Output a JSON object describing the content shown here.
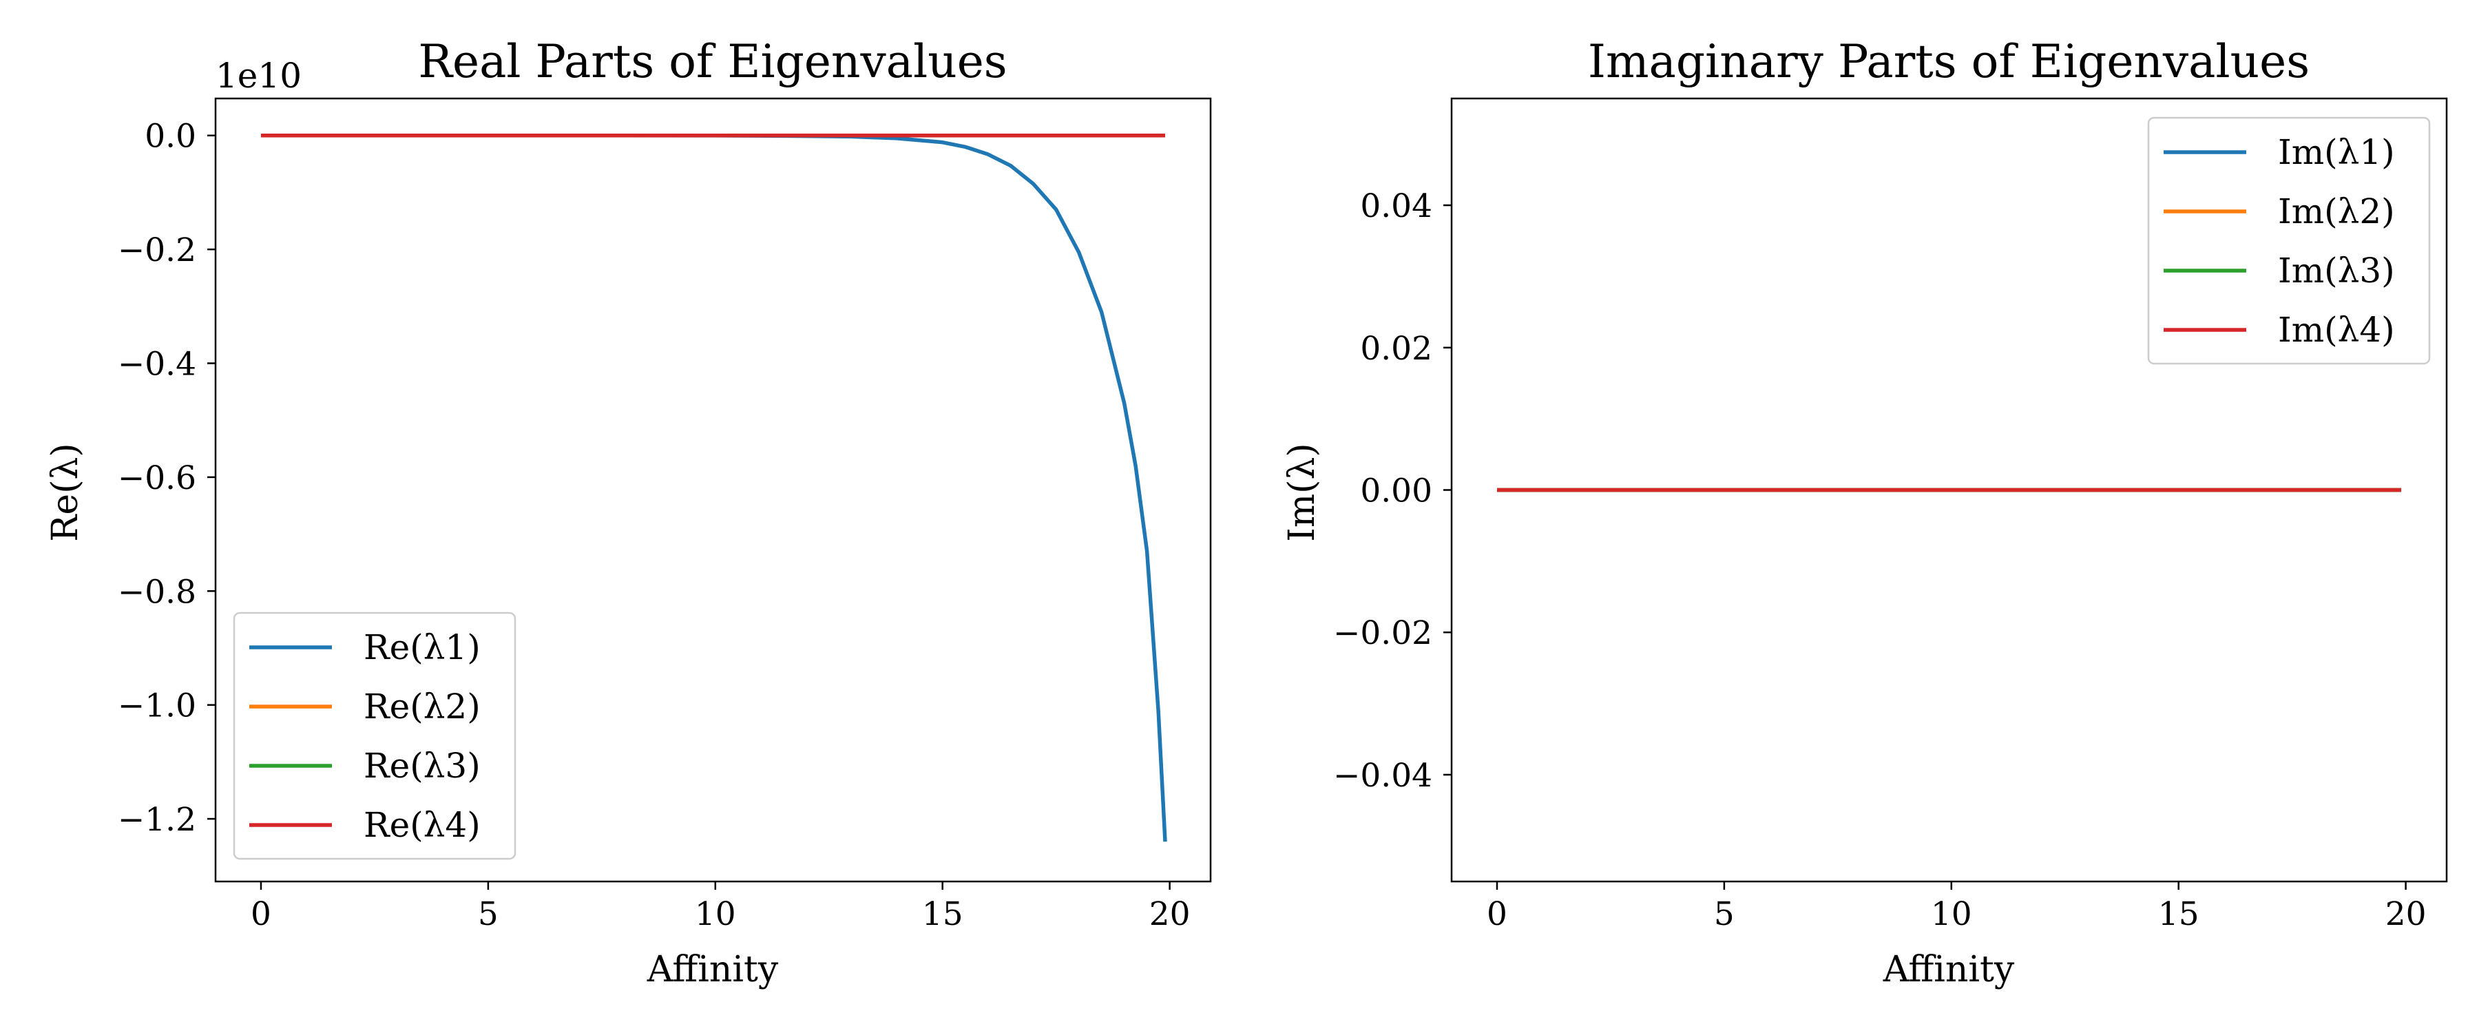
{
  "figure": {
    "background": "#ffffff"
  },
  "chart_data": [
    {
      "type": "line",
      "title": "Real Parts of Eigenvalues",
      "xlabel": "Affinity",
      "ylabel": "Re(λ)",
      "y_offset_label": "1e10",
      "xlim": [
        -1.0,
        20.9
      ],
      "ylim": [
        -1.31,
        0.065
      ],
      "y_unit_scale": 10000000000,
      "xticks": [
        0,
        5,
        10,
        15,
        20
      ],
      "xtick_labels": [
        "0",
        "5",
        "10",
        "15",
        "20"
      ],
      "yticks": [
        0.0,
        -0.2,
        -0.4,
        -0.6,
        -0.8,
        -1.0,
        -1.2
      ],
      "ytick_labels": [
        "0.0",
        "−0.2",
        "−0.4",
        "−0.6",
        "−0.8",
        "−1.0",
        "−1.2"
      ],
      "grid": false,
      "legend_position": "lower-left",
      "x": [
        0,
        5,
        10,
        12,
        13,
        14,
        15,
        15.5,
        16,
        16.5,
        17,
        17.5,
        18,
        18.5,
        19,
        19.25,
        19.5,
        19.75,
        19.9
      ],
      "series": [
        {
          "name": "Re(λ1)",
          "color": "#1f77b4",
          "values": [
            0,
            0,
            -0.0001,
            -0.001,
            -0.002,
            -0.005,
            -0.012,
            -0.02,
            -0.033,
            -0.053,
            -0.085,
            -0.13,
            -0.205,
            -0.31,
            -0.47,
            -0.58,
            -0.73,
            -1.01,
            -1.24
          ]
        },
        {
          "name": "Re(λ2)",
          "color": "#ff7f0e",
          "values": [
            0,
            0,
            0,
            0,
            0,
            0,
            0,
            0,
            0,
            0,
            0,
            0,
            0,
            0,
            0,
            0,
            0,
            0,
            0
          ]
        },
        {
          "name": "Re(λ3)",
          "color": "#2ca02c",
          "values": [
            0,
            0,
            0,
            0,
            0,
            0,
            0,
            0,
            0,
            0,
            0,
            0,
            0,
            0,
            0,
            0,
            0,
            0,
            0
          ]
        },
        {
          "name": "Re(λ4)",
          "color": "#d62728",
          "values": [
            0,
            0,
            0,
            0,
            0,
            0,
            0,
            0,
            0,
            0,
            0,
            0,
            0,
            0,
            0,
            0,
            0,
            0,
            0
          ]
        }
      ]
    },
    {
      "type": "line",
      "title": "Imaginary Parts of Eigenvalues",
      "xlabel": "Affinity",
      "ylabel": "Im(λ)",
      "xlim": [
        -1.0,
        20.9
      ],
      "ylim": [
        -0.055,
        0.055
      ],
      "xticks": [
        0,
        5,
        10,
        15,
        20
      ],
      "xtick_labels": [
        "0",
        "5",
        "10",
        "15",
        "20"
      ],
      "yticks": [
        0.04,
        0.02,
        0.0,
        -0.02,
        -0.04
      ],
      "ytick_labels": [
        "0.04",
        "0.02",
        "0.00",
        "−0.02",
        "−0.04"
      ],
      "grid": false,
      "legend_position": "upper-right",
      "x": [
        0,
        19.9
      ],
      "series": [
        {
          "name": "Im(λ1)",
          "color": "#1f77b4",
          "values": [
            0,
            0
          ]
        },
        {
          "name": "Im(λ2)",
          "color": "#ff7f0e",
          "values": [
            0,
            0
          ]
        },
        {
          "name": "Im(λ3)",
          "color": "#2ca02c",
          "values": [
            0,
            0
          ]
        },
        {
          "name": "Im(λ4)",
          "color": "#d62728",
          "values": [
            0,
            0
          ]
        }
      ]
    }
  ]
}
